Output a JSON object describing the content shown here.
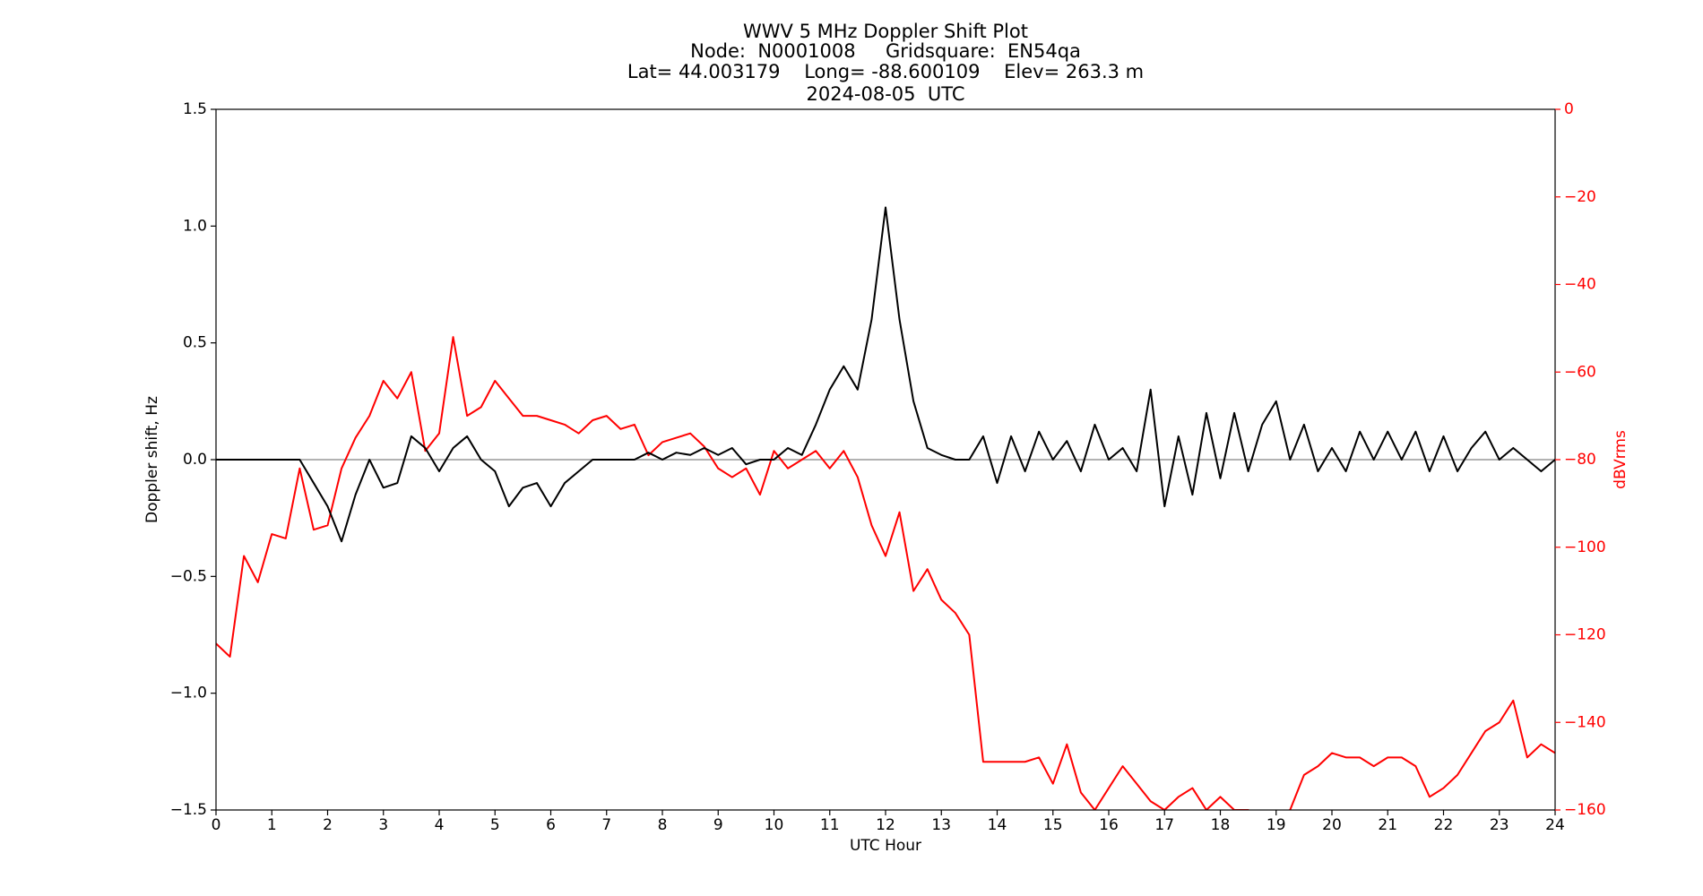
{
  "chart_data": {
    "type": "line",
    "title_lines": [
      "WWV 5 MHz Doppler Shift Plot",
      "Node:  N0001008     Gridsquare:  EN54qa",
      "Lat= 44.003179    Long= -88.600109    Elev= 263.3 m",
      "2024-08-05  UTC"
    ],
    "x_label": "UTC Hour",
    "y_label": "Doppler shift, Hz",
    "y2_label": "dBVrms",
    "x": [
      0,
      0.25,
      0.5,
      0.75,
      1,
      1.25,
      1.5,
      1.75,
      2,
      2.25,
      2.5,
      2.75,
      3,
      3.25,
      3.5,
      3.75,
      4,
      4.25,
      4.5,
      4.75,
      5,
      5.25,
      5.5,
      5.75,
      6,
      6.25,
      6.5,
      6.75,
      7,
      7.25,
      7.5,
      7.75,
      8,
      8.25,
      8.5,
      8.75,
      9,
      9.25,
      9.5,
      9.75,
      10,
      10.25,
      10.5,
      10.75,
      11,
      11.25,
      11.5,
      11.75,
      12,
      12.25,
      12.5,
      12.75,
      13,
      13.25,
      13.5,
      13.75,
      14,
      14.25,
      14.5,
      14.75,
      15,
      15.25,
      15.5,
      15.75,
      16,
      16.25,
      16.5,
      16.75,
      17,
      17.25,
      17.5,
      17.75,
      18,
      18.25,
      18.5,
      18.75,
      19,
      19.25,
      19.5,
      19.75,
      20,
      20.25,
      20.5,
      20.75,
      21,
      21.25,
      21.5,
      21.75,
      22,
      22.25,
      22.5,
      22.75,
      23,
      23.25,
      23.5,
      23.75,
      24
    ],
    "series": [
      {
        "name": "Doppler shift",
        "color": "#000000",
        "axis": "y",
        "values": [
          0,
          0,
          0,
          0,
          0,
          0,
          0,
          -0.1,
          -0.2,
          -0.35,
          -0.15,
          0,
          -0.12,
          -0.1,
          0.1,
          0.05,
          -0.05,
          0.05,
          0.1,
          0,
          -0.05,
          -0.2,
          -0.12,
          -0.1,
          -0.2,
          -0.1,
          -0.05,
          0,
          0,
          0,
          0,
          0.03,
          0,
          0.03,
          0.02,
          0.05,
          0.02,
          0.05,
          -0.02,
          0,
          0,
          0.05,
          0.02,
          0.15,
          0.3,
          0.4,
          0.3,
          0.6,
          1.08,
          0.6,
          0.25,
          0.05,
          0.02,
          0,
          0,
          0.1,
          -0.1,
          0.1,
          -0.05,
          0.12,
          0,
          0.08,
          -0.05,
          0.15,
          0,
          0.05,
          -0.05,
          0.3,
          -0.2,
          0.1,
          -0.15,
          0.2,
          -0.08,
          0.2,
          -0.05,
          0.15,
          0.25,
          0,
          0.15,
          -0.05,
          0.05,
          -0.05,
          0.12,
          0,
          0.12,
          0,
          0.12,
          -0.05,
          0.1,
          -0.05,
          0.05,
          0.12,
          0,
          0.05,
          0,
          -0.05,
          0
        ]
      },
      {
        "name": "dBVrms",
        "color": "#ff0000",
        "axis": "y2",
        "values": [
          -122,
          -125,
          -102,
          -108,
          -97,
          -98,
          -82,
          -96,
          -95,
          -82,
          -75,
          -70,
          -62,
          -66,
          -60,
          -78,
          -74,
          -52,
          -70,
          -68,
          -62,
          -66,
          -70,
          -70,
          -71,
          -72,
          -74,
          -71,
          -70,
          -73,
          -72,
          -79,
          -76,
          -75,
          -74,
          -77,
          -82,
          -84,
          -82,
          -88,
          -78,
          -82,
          -80,
          -78,
          -82,
          -78,
          -84,
          -95,
          -102,
          -92,
          -110,
          -105,
          -112,
          -115,
          -120,
          -149,
          -149,
          -149,
          -149,
          -148,
          -154,
          -145,
          -156,
          -160,
          -155,
          -150,
          -154,
          -158,
          -160,
          -157,
          -155,
          -160,
          -157,
          -160,
          -160,
          -162,
          -161,
          -160,
          -152,
          -150,
          -147,
          -148,
          -148,
          -150,
          -148,
          -148,
          -150,
          -157,
          -155,
          -152,
          -147,
          -142,
          -140,
          -135,
          -148,
          -145,
          -147
        ]
      }
    ],
    "reference_line": 0,
    "xlim": [
      0,
      24
    ],
    "xticks": [
      0,
      1,
      2,
      3,
      4,
      5,
      6,
      7,
      8,
      9,
      10,
      11,
      12,
      13,
      14,
      15,
      16,
      17,
      18,
      19,
      20,
      21,
      22,
      23,
      24
    ],
    "ylim": [
      -1.5,
      1.5
    ],
    "yticks": [
      {
        "value": -1.5,
        "label": "−1.5"
      },
      {
        "value": -1,
        "label": "−1.0"
      },
      {
        "value": -0.5,
        "label": "−0.5"
      },
      {
        "value": 0,
        "label": "0.0"
      },
      0.5,
      {
        "value": 1,
        "label": "1.0"
      },
      1.5
    ],
    "y2lim": [
      -160,
      0
    ],
    "y2ticks": [
      {
        "value": -160,
        "label": "−160"
      },
      {
        "value": -140,
        "label": "−140"
      },
      {
        "value": -120,
        "label": "−120"
      },
      {
        "value": -100,
        "label": "−100"
      },
      {
        "value": -80,
        "label": "−80"
      },
      {
        "value": -60,
        "label": "−60"
      },
      {
        "value": -40,
        "label": "−40"
      },
      {
        "value": -20,
        "label": "−20"
      },
      0
    ]
  }
}
